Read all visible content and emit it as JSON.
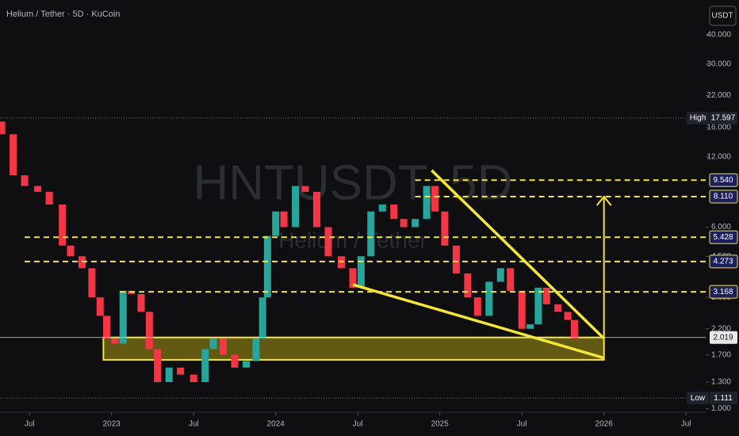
{
  "chart_data": {
    "type": "candlestick",
    "title": "Helium / Tether · 5D · KuCoin",
    "watermark": {
      "symbol": "HNTUSDT, 5D",
      "name": "Helium / Tether"
    },
    "currency": "USDT",
    "log_scale": true,
    "up_color": "#26a69a",
    "down_color": "#f23645",
    "xlim": [
      2022.32,
      2026.62
    ],
    "xticks": [
      {
        "value": 2022.5,
        "label": "Jul"
      },
      {
        "value": 2023,
        "label": "2023"
      },
      {
        "value": 2023.5,
        "label": "Jul"
      },
      {
        "value": 2024,
        "label": "2024"
      },
      {
        "value": 2024.5,
        "label": "Jul"
      },
      {
        "value": 2025,
        "label": "2025"
      },
      {
        "value": 2025.5,
        "label": "Jul"
      },
      {
        "value": 2026,
        "label": "2026"
      },
      {
        "value": 2026.5,
        "label": "Jul"
      }
    ],
    "ylim": [
      0.966,
      56.4
    ],
    "yticks": [
      {
        "value": 40,
        "label": "40.000"
      },
      {
        "value": 30,
        "label": "30.000"
      },
      {
        "value": 22,
        "label": "22.000"
      },
      {
        "value": 16,
        "label": "16.000"
      },
      {
        "value": 12,
        "label": "12.000"
      },
      {
        "value": 6,
        "label": "6.000"
      },
      {
        "value": 4.5,
        "label": "4.500"
      },
      {
        "value": 3,
        "label": "3.000"
      },
      {
        "value": 2.2,
        "label": "2.200"
      },
      {
        "value": 1.7,
        "label": "1.700"
      },
      {
        "value": 1.3,
        "label": "1.300"
      },
      {
        "value": 1,
        "label": "1.000"
      }
    ],
    "x": [
      2022.33,
      2022.4,
      2022.47,
      2022.55,
      2022.62,
      2022.7,
      2022.75,
      2022.82,
      2022.88,
      2022.93,
      2022.97,
      2023.02,
      2023.07,
      2023.12,
      2023.18,
      2023.23,
      2023.28,
      2023.35,
      2023.42,
      2023.5,
      2023.57,
      2023.62,
      2023.68,
      2023.75,
      2023.82,
      2023.88,
      2023.92,
      2023.95,
      2024.0,
      2024.05,
      2024.12,
      2024.18,
      2024.25,
      2024.32,
      2024.4,
      2024.47,
      2024.52,
      2024.58,
      2024.65,
      2024.72,
      2024.78,
      2024.85,
      2024.92,
      2024.97,
      2025.03,
      2025.1,
      2025.17,
      2025.23,
      2025.3,
      2025.37,
      2025.43,
      2025.5,
      2025.55,
      2025.6,
      2025.65,
      2025.72,
      2025.78,
      2025.82
    ],
    "open": [
      17,
      15,
      10,
      9,
      8.5,
      7.5,
      5.0,
      4.5,
      4.0,
      3.0,
      2.5,
      2.0,
      1.9,
      3.2,
      3.1,
      2.6,
      1.8,
      1.3,
      1.5,
      1.4,
      1.3,
      1.8,
      2.0,
      1.7,
      1.5,
      1.6,
      2.0,
      3.0,
      5.5,
      7.0,
      6.0,
      9.0,
      8.5,
      6.0,
      4.5,
      4.0,
      3.3,
      4.5,
      7.0,
      7.5,
      6.5,
      6.0,
      6.5,
      9.0,
      7.0,
      5.0,
      3.8,
      3.0,
      2.5,
      3.5,
      4.0,
      3.2,
      2.2,
      2.3,
      3.3,
      2.8,
      2.6,
      2.4
    ],
    "close": [
      15,
      10,
      9,
      8.5,
      7.5,
      5.0,
      4.5,
      4.0,
      3.0,
      2.5,
      2.0,
      1.9,
      3.2,
      3.1,
      2.6,
      1.8,
      1.3,
      1.5,
      1.4,
      1.3,
      1.8,
      2.0,
      1.7,
      1.5,
      1.6,
      2.0,
      3.0,
      5.5,
      7.0,
      6.0,
      9.0,
      8.5,
      6.0,
      4.5,
      4.0,
      3.3,
      4.5,
      7.0,
      7.5,
      6.5,
      6.0,
      6.5,
      9.0,
      7.0,
      5.0,
      3.8,
      3.0,
      2.5,
      3.5,
      4.0,
      3.2,
      2.2,
      2.3,
      3.3,
      2.8,
      2.6,
      2.4,
      2.0
    ],
    "levels": [
      {
        "value": 9.54,
        "label": "9.540",
        "from": 2024.85
      },
      {
        "value": 8.11,
        "label": "8.110",
        "from": 2024.85
      },
      {
        "value": 5.428,
        "label": "5.428",
        "from": 2022.47
      },
      {
        "value": 4.273,
        "label": "4.273",
        "from": 2022.47
      },
      {
        "value": 3.168,
        "label": "3.168",
        "from": 2023.05
      }
    ],
    "last": {
      "value": 2.019,
      "label": "2.019"
    },
    "high": {
      "name": "High",
      "value": 17.597,
      "label": "17.597"
    },
    "low": {
      "name": "Low",
      "value": 1.111,
      "label": "1.111"
    },
    "zone": {
      "x": [
        2022.95,
        2026.0
      ],
      "y": [
        1.62,
        2.02
      ]
    },
    "trendlines": [
      {
        "x": [
          2024.95,
          2026.0
        ],
        "y": [
          10.5,
          2.0
        ]
      },
      {
        "x": [
          2024.47,
          2026.0
        ],
        "y": [
          3.4,
          1.65
        ]
      }
    ],
    "arrow": {
      "x": [
        2026.0,
        2026.0
      ],
      "y": [
        2.0,
        8.1
      ]
    }
  }
}
